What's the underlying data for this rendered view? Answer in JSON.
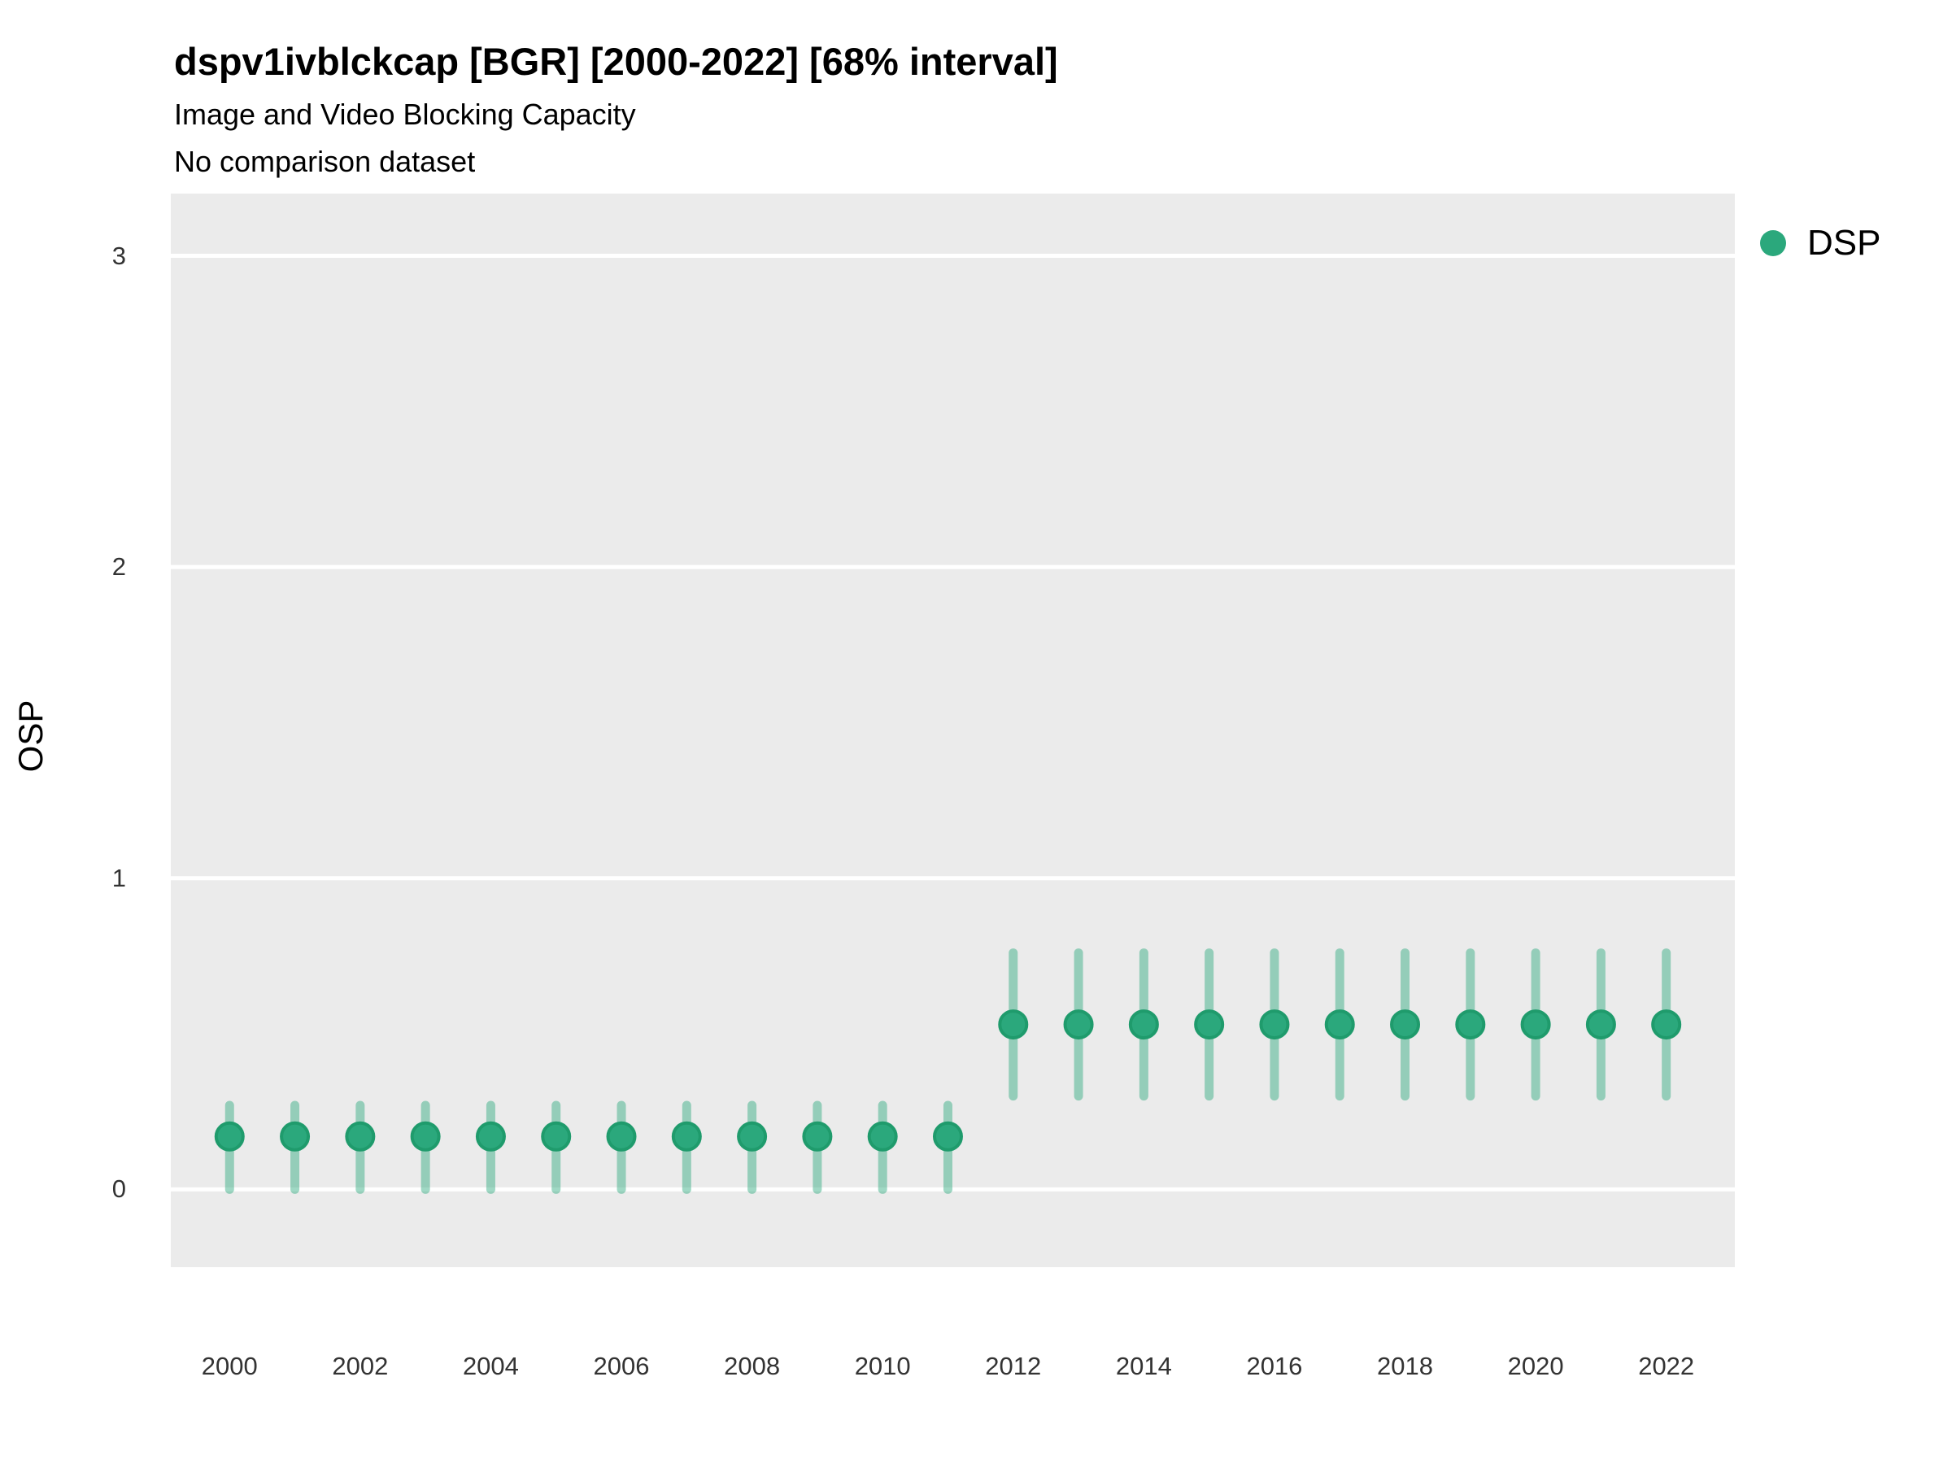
{
  "header": {
    "title": "dspv1ivblckcap [BGR] [2000-2022] [68% interval]",
    "subtitle": "Image and Video Blocking Capacity",
    "note": "No comparison dataset"
  },
  "legend": {
    "position": "right-top",
    "items": [
      {
        "label": "DSP",
        "marker": "circle",
        "color": "#2BA87C"
      }
    ]
  },
  "colors": {
    "point_fill": "#2BA87C",
    "point_stroke": "#1F9B6C",
    "interval_stroke": "#2BA87C",
    "interval_opacity": 0.45,
    "panel_bg": "#EBEBEB",
    "grid_line": "#FFFFFF",
    "tick_text": "#333333",
    "title_text": "#000000"
  },
  "chart_data": {
    "type": "scatter",
    "variant": "point-interval",
    "title": "dspv1ivblckcap [BGR] [2000-2022] [68% interval]",
    "subtitle": "Image and Video Blocking Capacity",
    "note": "No comparison dataset",
    "interval_level": "68%",
    "xlabel": "",
    "ylabel": "OSP",
    "xlim": [
      1999.1,
      2023.05
    ],
    "ylim": [
      -0.25,
      3.2
    ],
    "x_ticks": [
      2000,
      2002,
      2004,
      2006,
      2008,
      2010,
      2012,
      2014,
      2016,
      2018,
      2020,
      2022
    ],
    "y_ticks": [
      0,
      1,
      2,
      3
    ],
    "grid": "horizontal-major-only",
    "legend_position": "right",
    "series": [
      {
        "name": "DSP",
        "color": "#2BA87C",
        "points": [
          {
            "year": 2000,
            "est": 0.17,
            "lo": 0.0,
            "hi": 0.27
          },
          {
            "year": 2001,
            "est": 0.17,
            "lo": 0.0,
            "hi": 0.27
          },
          {
            "year": 2002,
            "est": 0.17,
            "lo": 0.0,
            "hi": 0.27
          },
          {
            "year": 2003,
            "est": 0.17,
            "lo": 0.0,
            "hi": 0.27
          },
          {
            "year": 2004,
            "est": 0.17,
            "lo": 0.0,
            "hi": 0.27
          },
          {
            "year": 2005,
            "est": 0.17,
            "lo": 0.0,
            "hi": 0.27
          },
          {
            "year": 2006,
            "est": 0.17,
            "lo": 0.0,
            "hi": 0.27
          },
          {
            "year": 2007,
            "est": 0.17,
            "lo": 0.0,
            "hi": 0.27
          },
          {
            "year": 2008,
            "est": 0.17,
            "lo": 0.0,
            "hi": 0.27
          },
          {
            "year": 2009,
            "est": 0.17,
            "lo": 0.0,
            "hi": 0.27
          },
          {
            "year": 2010,
            "est": 0.17,
            "lo": 0.0,
            "hi": 0.27
          },
          {
            "year": 2011,
            "est": 0.17,
            "lo": 0.0,
            "hi": 0.27
          },
          {
            "year": 2012,
            "est": 0.53,
            "lo": 0.3,
            "hi": 0.76
          },
          {
            "year": 2013,
            "est": 0.53,
            "lo": 0.3,
            "hi": 0.76
          },
          {
            "year": 2014,
            "est": 0.53,
            "lo": 0.3,
            "hi": 0.76
          },
          {
            "year": 2015,
            "est": 0.53,
            "lo": 0.3,
            "hi": 0.76
          },
          {
            "year": 2016,
            "est": 0.53,
            "lo": 0.3,
            "hi": 0.76
          },
          {
            "year": 2017,
            "est": 0.53,
            "lo": 0.3,
            "hi": 0.76
          },
          {
            "year": 2018,
            "est": 0.53,
            "lo": 0.3,
            "hi": 0.76
          },
          {
            "year": 2019,
            "est": 0.53,
            "lo": 0.3,
            "hi": 0.76
          },
          {
            "year": 2020,
            "est": 0.53,
            "lo": 0.3,
            "hi": 0.76
          },
          {
            "year": 2021,
            "est": 0.53,
            "lo": 0.3,
            "hi": 0.76
          },
          {
            "year": 2022,
            "est": 0.53,
            "lo": 0.3,
            "hi": 0.76
          }
        ]
      }
    ]
  }
}
